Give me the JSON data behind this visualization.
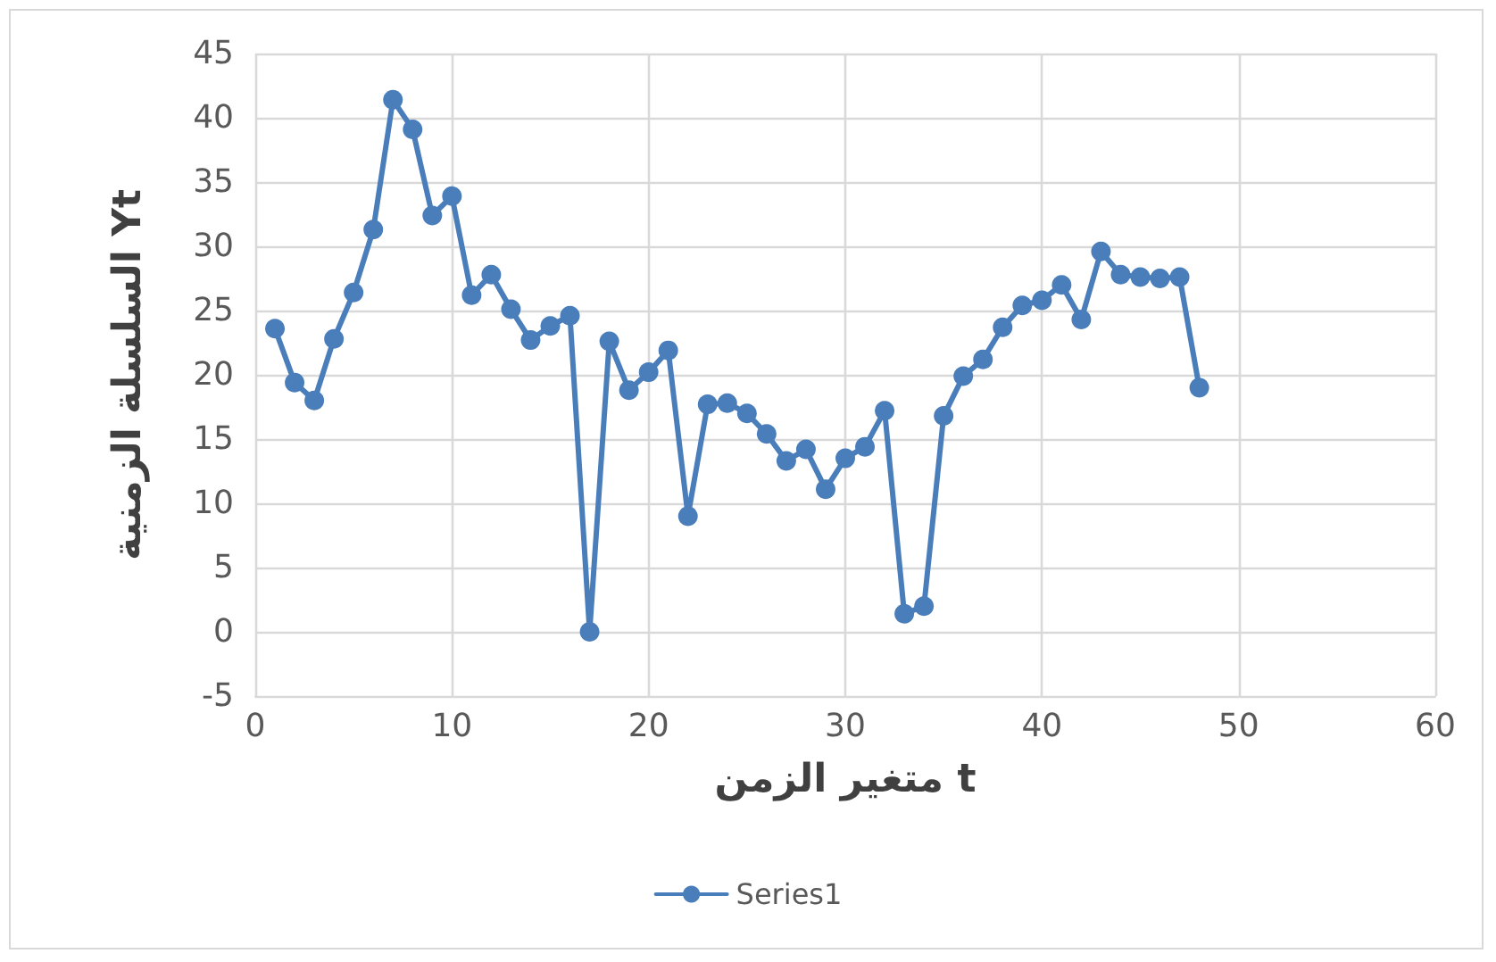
{
  "chart_data": {
    "type": "line",
    "xlabel": "متغير الزمن t",
    "ylabel": "السلسلة الزمنية Yt",
    "x": [
      1,
      2,
      3,
      4,
      5,
      6,
      7,
      8,
      9,
      10,
      11,
      12,
      13,
      14,
      15,
      16,
      17,
      18,
      19,
      20,
      21,
      22,
      23,
      24,
      25,
      26,
      27,
      28,
      29,
      30,
      31,
      32,
      33,
      34,
      35,
      36,
      37,
      38,
      39,
      40,
      41,
      42,
      43,
      44,
      45,
      46,
      47,
      48
    ],
    "series": [
      {
        "name": "Series1",
        "color": "#4a7ebb",
        "values": [
          23.6,
          19.4,
          18.0,
          22.8,
          26.4,
          31.3,
          41.4,
          39.1,
          32.4,
          33.9,
          26.2,
          27.8,
          25.1,
          22.7,
          23.8,
          24.6,
          0,
          22.6,
          18.8,
          20.2,
          21.9,
          9.0,
          17.7,
          17.8,
          17.0,
          15.4,
          13.3,
          14.2,
          11.1,
          13.5,
          14.4,
          17.2,
          1.4,
          2.0,
          16.8,
          19.9,
          21.2,
          23.7,
          25.4,
          25.8,
          27.0,
          24.3,
          29.6,
          27.8,
          27.6,
          27.5,
          27.6,
          19.0
        ]
      }
    ],
    "xlim": [
      0,
      60
    ],
    "xticks": [
      0,
      10,
      20,
      30,
      40,
      50,
      60
    ],
    "ylim": [
      -5,
      45
    ],
    "yticks": [
      -5,
      0,
      5,
      10,
      15,
      20,
      25,
      30,
      35,
      40,
      45
    ],
    "grid": true,
    "legend": "bottom",
    "marker": "circle",
    "line_style": "solid"
  }
}
